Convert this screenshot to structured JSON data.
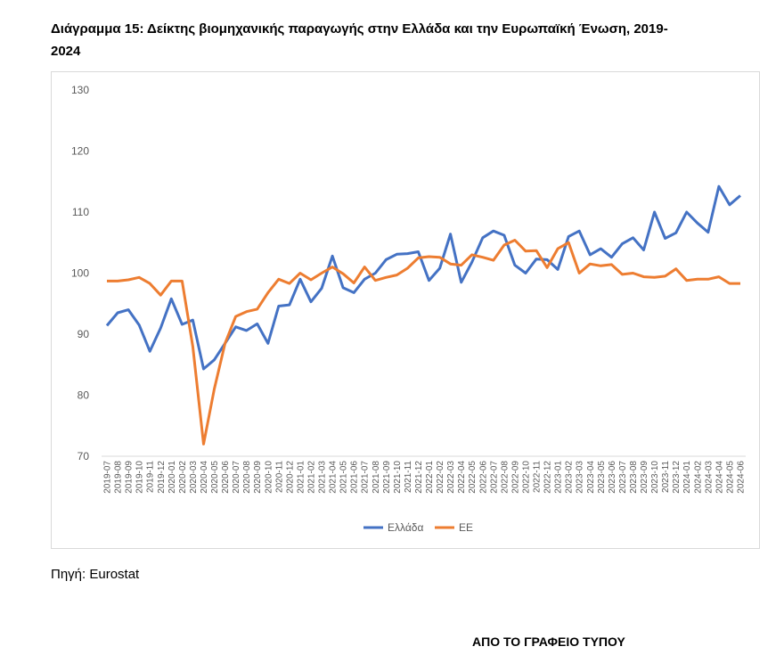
{
  "title": "Διάγραμμα 15: Δείκτης βιομηχανικής παραγωγής στην Ελλάδα και την Ευρωπαϊκή Ένωση, 2019-2024",
  "source": "Πηγή: Eurostat",
  "footer": "ΑΠΟ ΤΟ ΓΡΑΦΕΙΟ ΤΥΠΟΥ",
  "chart_data": {
    "type": "line",
    "title": "",
    "xlabel": "",
    "ylabel": "",
    "ylim": [
      70,
      130
    ],
    "yticks": [
      70,
      80,
      90,
      100,
      110,
      120,
      130
    ],
    "grid": false,
    "legend": "bottom",
    "categories": [
      "2019-07",
      "2019-08",
      "2019-09",
      "2019-10",
      "2019-11",
      "2019-12",
      "2020-01",
      "2020-02",
      "2020-03",
      "2020-04",
      "2020-05",
      "2020-06",
      "2020-07",
      "2020-08",
      "2020-09",
      "2020-10",
      "2020-11",
      "2020-12",
      "2021-01",
      "2021-02",
      "2021-03",
      "2021-04",
      "2021-05",
      "2021-06",
      "2021-07",
      "2021-08",
      "2021-09",
      "2021-10",
      "2021-11",
      "2021-12",
      "2022-01",
      "2022-02",
      "2022-03",
      "2022-04",
      "2022-05",
      "2022-06",
      "2022-07",
      "2022-08",
      "2022-09",
      "2022-10",
      "2022-11",
      "2022-12",
      "2023-01",
      "2023-02",
      "2023-03",
      "2023-04",
      "2023-05",
      "2023-06",
      "2023-07",
      "2023-08",
      "2023-09",
      "2023-10",
      "2023-11",
      "2023-12",
      "2024-01",
      "2024-02",
      "2024-03",
      "2024-04",
      "2024-05",
      "2024-06"
    ],
    "series": [
      {
        "name": "Ελλάδα",
        "color": "#4472c4",
        "values": [
          91.4,
          93.5,
          94,
          91.5,
          87.2,
          91,
          95.8,
          91.6,
          92.3,
          84.3,
          85.8,
          88.5,
          91.2,
          90.6,
          91.7,
          88.5,
          94.6,
          94.8,
          99,
          95.3,
          97.5,
          102.8,
          97.6,
          96.8,
          99,
          100,
          102.2,
          103.1,
          103.2,
          103.5,
          98.8,
          100.8,
          106.4,
          98.5,
          101.8,
          105.8,
          106.9,
          106.2,
          101.3,
          100,
          102.3,
          102.2,
          100.6,
          106,
          106.9,
          103,
          104,
          102.6,
          104.8,
          105.8,
          103.8,
          110,
          105.7,
          106.6,
          110,
          108.2,
          106.7,
          114.2,
          111.2,
          112.7
        ]
      },
      {
        "name": "ΕΕ",
        "color": "#ed7d31",
        "values": [
          98.7,
          98.7,
          98.9,
          99.3,
          98.3,
          96.4,
          98.7,
          98.7,
          88,
          72,
          81,
          88.5,
          92.9,
          93.7,
          94.1,
          96.8,
          99,
          98.3,
          100,
          98.9,
          100,
          101,
          99.9,
          98.4,
          101,
          98.8,
          99.3,
          99.7,
          100.8,
          102.5,
          102.7,
          102.6,
          101.5,
          101.3,
          103,
          102.6,
          102.1,
          104.6,
          105.4,
          103.6,
          103.7,
          100.9,
          104,
          105,
          100,
          101.5,
          101.2,
          101.4,
          99.8,
          100,
          99.4,
          99.3,
          99.5,
          100.7,
          98.8,
          99,
          99,
          99.4,
          98.3,
          98.3
        ]
      }
    ]
  }
}
